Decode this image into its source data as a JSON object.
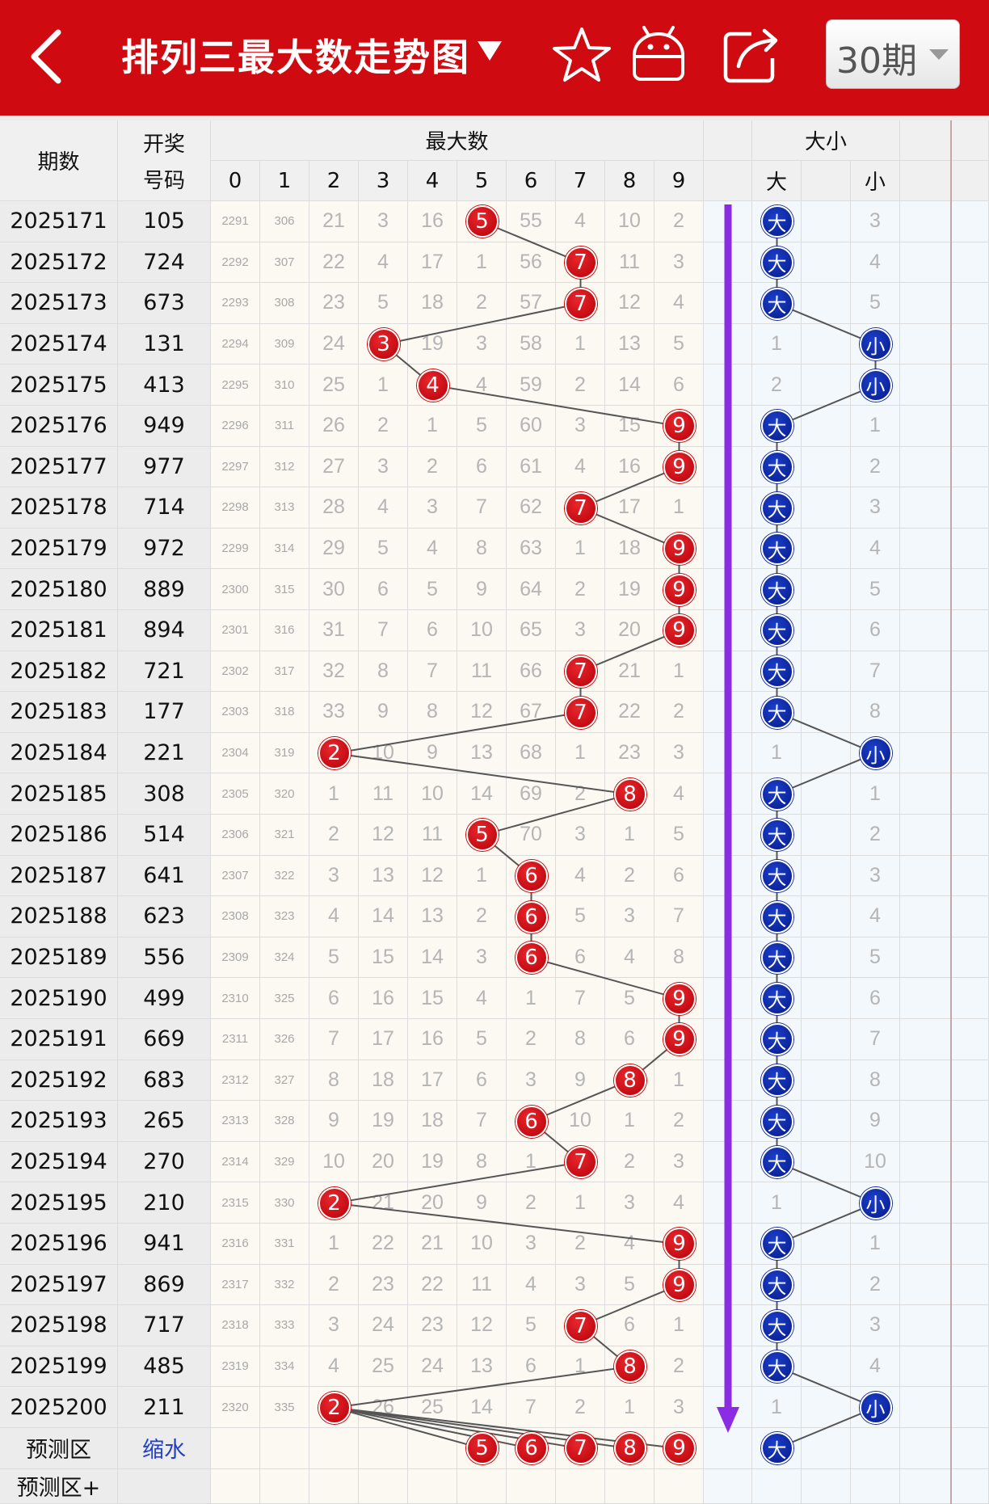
{
  "app": {
    "title": "排列三最大数走势图",
    "period_select": "30期"
  },
  "icons": {
    "back": "back-chevron-icon",
    "caret": "dropdown-triangle-icon",
    "favorite": "star-icon",
    "robot": "robot-icon",
    "share": "share-icon"
  },
  "colors": {
    "header_bg": "#cf0a10",
    "ball_red": "#d4141b",
    "ball_blue": "#0a238f",
    "trend_arrow": "#8b2be2"
  },
  "table": {
    "headers": {
      "period": "期数",
      "draw": "开奖号码",
      "maxnum": "最大数",
      "size": "大小",
      "big": "大",
      "small": "小",
      "digits": [
        "0",
        "1",
        "2",
        "3",
        "4",
        "5",
        "6",
        "7",
        "8",
        "9"
      ]
    },
    "rows": [
      {
        "period": "2025171",
        "draw": "105",
        "max": 5,
        "miss": [
          "2291",
          "306",
          "21",
          "3",
          "16",
          "5",
          "55",
          "4",
          "10",
          "2"
        ],
        "size": "大",
        "sizeMiss": [
          "大",
          "3"
        ]
      },
      {
        "period": "2025172",
        "draw": "724",
        "max": 7,
        "miss": [
          "2292",
          "307",
          "22",
          "4",
          "17",
          "1",
          "56",
          "7",
          "11",
          "3"
        ],
        "size": "大",
        "sizeMiss": [
          "大",
          "4"
        ]
      },
      {
        "period": "2025173",
        "draw": "673",
        "max": 7,
        "miss": [
          "2293",
          "308",
          "23",
          "5",
          "18",
          "2",
          "57",
          "7",
          "12",
          "4"
        ],
        "size": "大",
        "sizeMiss": [
          "大",
          "5"
        ]
      },
      {
        "period": "2025174",
        "draw": "131",
        "max": 3,
        "miss": [
          "2294",
          "309",
          "24",
          "3",
          "19",
          "3",
          "58",
          "1",
          "13",
          "5"
        ],
        "size": "小",
        "sizeMiss": [
          "1",
          "小"
        ]
      },
      {
        "period": "2025175",
        "draw": "413",
        "max": 4,
        "miss": [
          "2295",
          "310",
          "25",
          "1",
          "4",
          "4",
          "59",
          "2",
          "14",
          "6"
        ],
        "size": "小",
        "sizeMiss": [
          "2",
          "小"
        ]
      },
      {
        "period": "2025176",
        "draw": "949",
        "max": 9,
        "miss": [
          "2296",
          "311",
          "26",
          "2",
          "1",
          "5",
          "60",
          "3",
          "15",
          "9"
        ],
        "size": "大",
        "sizeMiss": [
          "大",
          "1"
        ]
      },
      {
        "period": "2025177",
        "draw": "977",
        "max": 9,
        "miss": [
          "2297",
          "312",
          "27",
          "3",
          "2",
          "6",
          "61",
          "4",
          "16",
          "9"
        ],
        "size": "大",
        "sizeMiss": [
          "大",
          "2"
        ]
      },
      {
        "period": "2025178",
        "draw": "714",
        "max": 7,
        "miss": [
          "2298",
          "313",
          "28",
          "4",
          "3",
          "7",
          "62",
          "7",
          "17",
          "1"
        ],
        "size": "大",
        "sizeMiss": [
          "大",
          "3"
        ]
      },
      {
        "period": "2025179",
        "draw": "972",
        "max": 9,
        "miss": [
          "2299",
          "314",
          "29",
          "5",
          "4",
          "8",
          "63",
          "1",
          "18",
          "9"
        ],
        "size": "大",
        "sizeMiss": [
          "大",
          "4"
        ]
      },
      {
        "period": "2025180",
        "draw": "889",
        "max": 9,
        "miss": [
          "2300",
          "315",
          "30",
          "6",
          "5",
          "9",
          "64",
          "2",
          "19",
          "9"
        ],
        "size": "大",
        "sizeMiss": [
          "大",
          "5"
        ]
      },
      {
        "period": "2025181",
        "draw": "894",
        "max": 9,
        "miss": [
          "2301",
          "316",
          "31",
          "7",
          "6",
          "10",
          "65",
          "3",
          "20",
          "9"
        ],
        "size": "大",
        "sizeMiss": [
          "大",
          "6"
        ]
      },
      {
        "period": "2025182",
        "draw": "721",
        "max": 7,
        "miss": [
          "2302",
          "317",
          "32",
          "8",
          "7",
          "11",
          "66",
          "7",
          "21",
          "1"
        ],
        "size": "大",
        "sizeMiss": [
          "大",
          "7"
        ]
      },
      {
        "period": "2025183",
        "draw": "177",
        "max": 7,
        "miss": [
          "2303",
          "318",
          "33",
          "9",
          "8",
          "12",
          "67",
          "7",
          "22",
          "2"
        ],
        "size": "大",
        "sizeMiss": [
          "大",
          "8"
        ]
      },
      {
        "period": "2025184",
        "draw": "221",
        "max": 2,
        "miss": [
          "2304",
          "319",
          "2",
          "10",
          "9",
          "13",
          "68",
          "1",
          "23",
          "3"
        ],
        "size": "小",
        "sizeMiss": [
          "1",
          "小"
        ]
      },
      {
        "period": "2025185",
        "draw": "308",
        "max": 8,
        "miss": [
          "2305",
          "320",
          "1",
          "11",
          "10",
          "14",
          "69",
          "2",
          "8",
          "4"
        ],
        "size": "大",
        "sizeMiss": [
          "大",
          "1"
        ]
      },
      {
        "period": "2025186",
        "draw": "514",
        "max": 5,
        "miss": [
          "2306",
          "321",
          "2",
          "12",
          "11",
          "5",
          "70",
          "3",
          "1",
          "5"
        ],
        "size": "大",
        "sizeMiss": [
          "大",
          "2"
        ]
      },
      {
        "period": "2025187",
        "draw": "641",
        "max": 6,
        "miss": [
          "2307",
          "322",
          "3",
          "13",
          "12",
          "1",
          "6",
          "4",
          "2",
          "6"
        ],
        "size": "大",
        "sizeMiss": [
          "大",
          "3"
        ]
      },
      {
        "period": "2025188",
        "draw": "623",
        "max": 6,
        "miss": [
          "2308",
          "323",
          "4",
          "14",
          "13",
          "2",
          "6",
          "5",
          "3",
          "7"
        ],
        "size": "大",
        "sizeMiss": [
          "大",
          "4"
        ]
      },
      {
        "period": "2025189",
        "draw": "556",
        "max": 6,
        "miss": [
          "2309",
          "324",
          "5",
          "15",
          "14",
          "3",
          "6",
          "6",
          "4",
          "8"
        ],
        "size": "大",
        "sizeMiss": [
          "大",
          "5"
        ]
      },
      {
        "period": "2025190",
        "draw": "499",
        "max": 9,
        "miss": [
          "2310",
          "325",
          "6",
          "16",
          "15",
          "4",
          "1",
          "7",
          "5",
          "9"
        ],
        "size": "大",
        "sizeMiss": [
          "大",
          "6"
        ]
      },
      {
        "period": "2025191",
        "draw": "669",
        "max": 9,
        "miss": [
          "2311",
          "326",
          "7",
          "17",
          "16",
          "5",
          "2",
          "8",
          "6",
          "9"
        ],
        "size": "大",
        "sizeMiss": [
          "大",
          "7"
        ]
      },
      {
        "period": "2025192",
        "draw": "683",
        "max": 8,
        "miss": [
          "2312",
          "327",
          "8",
          "18",
          "17",
          "6",
          "3",
          "9",
          "8",
          "1"
        ],
        "size": "大",
        "sizeMiss": [
          "大",
          "8"
        ]
      },
      {
        "period": "2025193",
        "draw": "265",
        "max": 6,
        "miss": [
          "2313",
          "328",
          "9",
          "19",
          "18",
          "7",
          "6",
          "10",
          "1",
          "2"
        ],
        "size": "大",
        "sizeMiss": [
          "大",
          "9"
        ]
      },
      {
        "period": "2025194",
        "draw": "270",
        "max": 7,
        "miss": [
          "2314",
          "329",
          "10",
          "20",
          "19",
          "8",
          "1",
          "7",
          "2",
          "3"
        ],
        "size": "大",
        "sizeMiss": [
          "大",
          "10"
        ]
      },
      {
        "period": "2025195",
        "draw": "210",
        "max": 2,
        "miss": [
          "2315",
          "330",
          "2",
          "21",
          "20",
          "9",
          "2",
          "1",
          "3",
          "4"
        ],
        "size": "小",
        "sizeMiss": [
          "1",
          "小"
        ]
      },
      {
        "period": "2025196",
        "draw": "941",
        "max": 9,
        "miss": [
          "2316",
          "331",
          "1",
          "22",
          "21",
          "10",
          "3",
          "2",
          "4",
          "9"
        ],
        "size": "大",
        "sizeMiss": [
          "大",
          "1"
        ]
      },
      {
        "period": "2025197",
        "draw": "869",
        "max": 9,
        "miss": [
          "2317",
          "332",
          "2",
          "23",
          "22",
          "11",
          "4",
          "3",
          "5",
          "9"
        ],
        "size": "大",
        "sizeMiss": [
          "大",
          "2"
        ]
      },
      {
        "period": "2025198",
        "draw": "717",
        "max": 7,
        "miss": [
          "2318",
          "333",
          "3",
          "24",
          "23",
          "12",
          "5",
          "7",
          "6",
          "1"
        ],
        "size": "大",
        "sizeMiss": [
          "大",
          "3"
        ]
      },
      {
        "period": "2025199",
        "draw": "485",
        "max": 8,
        "miss": [
          "2319",
          "334",
          "4",
          "25",
          "24",
          "13",
          "6",
          "1",
          "8",
          "2"
        ],
        "size": "大",
        "sizeMiss": [
          "大",
          "4"
        ]
      },
      {
        "period": "2025200",
        "draw": "211",
        "max": 2,
        "miss": [
          "2320",
          "335",
          "2",
          "26",
          "25",
          "14",
          "7",
          "2",
          "1",
          "3"
        ],
        "size": "小",
        "sizeMiss": [
          "1",
          "小"
        ]
      }
    ],
    "prediction": {
      "label": "预测区",
      "shrink_link": "缩水",
      "digits": [
        5,
        6,
        7,
        8,
        9
      ],
      "size": "大"
    },
    "prediction_plus": {
      "label": "预测区+"
    }
  }
}
